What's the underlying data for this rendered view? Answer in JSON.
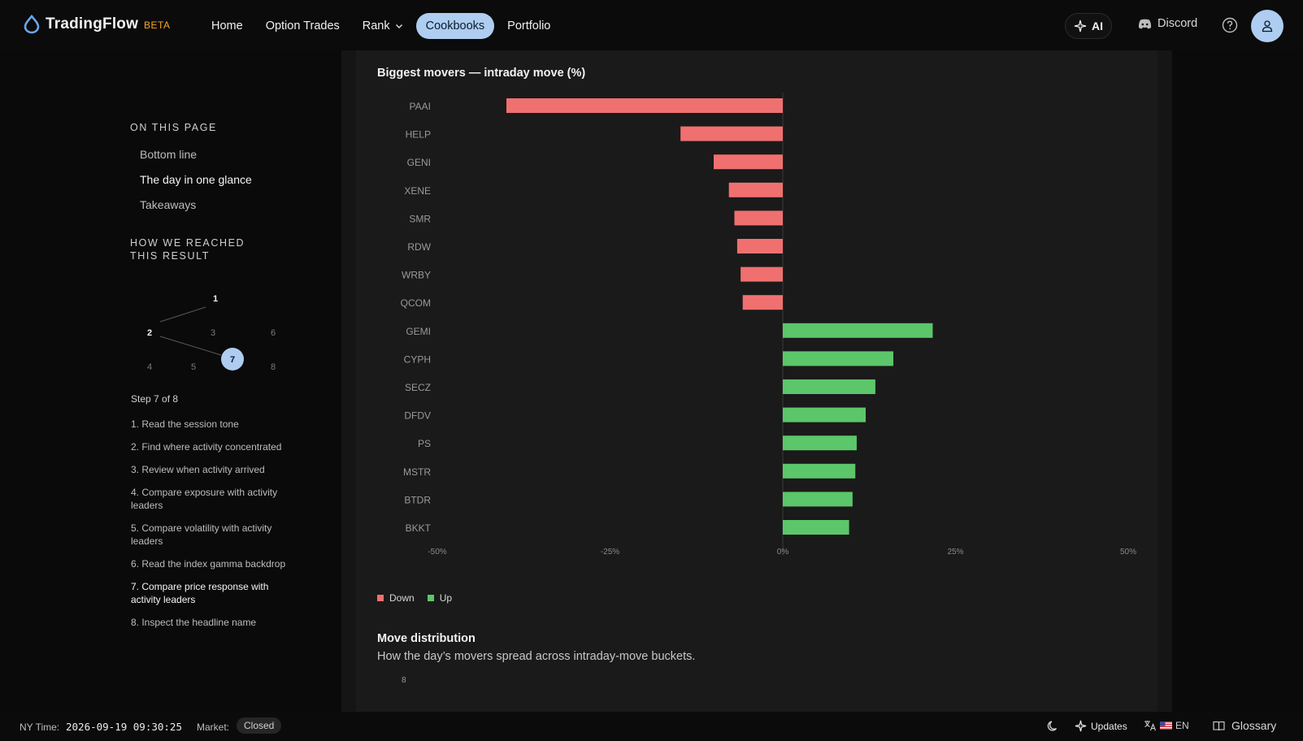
{
  "brand": {
    "name": "TradingFlow",
    "badge": "BETA"
  },
  "nav": {
    "home": "Home",
    "option_trades": "Option Trades",
    "rank": "Rank",
    "cookbooks": "Cookbooks",
    "portfolio": "Portfolio"
  },
  "header": {
    "ai_label": "AI",
    "discord_label": "Discord"
  },
  "side": {
    "on_this_page": "ON THIS PAGE",
    "toc": [
      "Bottom line",
      "The day in one glance",
      "Takeaways"
    ],
    "how_heading": "HOW WE REACHED THIS RESULT",
    "graph_nodes": [
      "1",
      "2",
      "3",
      "6",
      "4",
      "5",
      "7",
      "8"
    ],
    "step_of": "Step 7 of 8",
    "steps": [
      "1.  Read the session tone",
      "2.  Find where activity concentrated",
      "3.  Review when activity arrived",
      "4.  Compare exposure with activity leaders",
      "5.  Compare volatility with activity leaders",
      "6.  Read the index gamma backdrop",
      "7.  Compare price response with activity leaders",
      "8.  Inspect the headline name"
    ]
  },
  "chart_title": "Biggest movers — intraday move (%)",
  "chart_data": {
    "type": "bar",
    "orientation": "horizontal",
    "title": "Biggest movers — intraday move (%)",
    "categories": [
      "PAAI",
      "HELP",
      "GENI",
      "XENE",
      "SMR",
      "RDW",
      "WRBY",
      "QCOM",
      "GEMI",
      "CYPH",
      "SECZ",
      "DFDV",
      "PS",
      "MSTR",
      "BTDR",
      "BKKT"
    ],
    "values": [
      -40.0,
      -14.8,
      -10.0,
      -7.8,
      -7.0,
      -6.6,
      -6.1,
      -5.8,
      21.7,
      16.0,
      13.4,
      12.0,
      10.7,
      10.5,
      10.1,
      9.6
    ],
    "xlim": [
      -50,
      50
    ],
    "xticks": [
      "-50%",
      "-25%",
      "0%",
      "25%",
      "50%"
    ],
    "legend": [
      "Down",
      "Up"
    ],
    "legend_position": "bottom-left",
    "colors": {
      "down": "#f07070",
      "up": "#5cc66a"
    }
  },
  "dist": {
    "title": "Move distribution",
    "subtitle": "How the day’s movers spread across intraday-move buckets.",
    "tick": "8"
  },
  "footer": {
    "ny_label": "NY Time:",
    "ny_time": "2026-09-19 09:30:25",
    "market_label": "Market:",
    "market_status": "Closed",
    "updates": "Updates",
    "lang": "EN",
    "glossary": "Glossary"
  }
}
